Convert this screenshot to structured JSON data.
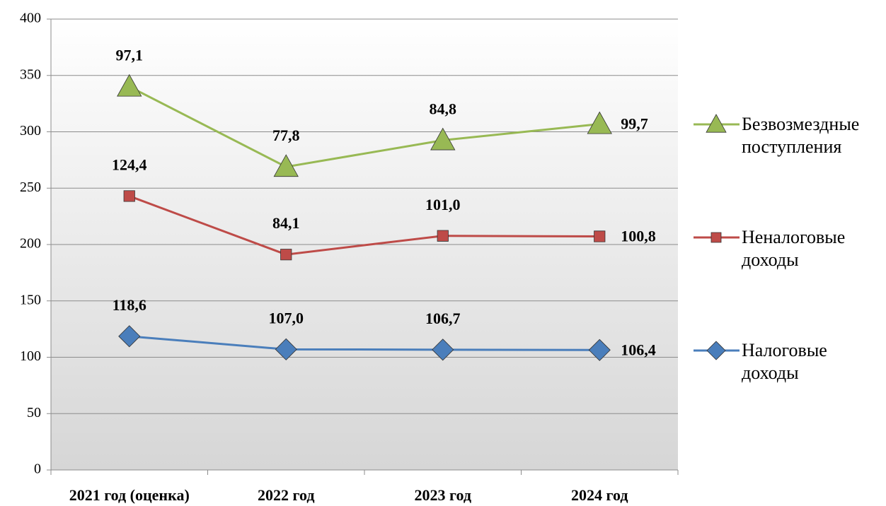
{
  "chart_data": {
    "type": "line",
    "stacked": true,
    "categories": [
      "2021 год (оценка)",
      "2022 год",
      "2023 год",
      "2024 год"
    ],
    "series": [
      {
        "name": "Налоговые доходы",
        "color": "#4a7ebb",
        "marker": "diamond",
        "values": [
          118.6,
          107.0,
          106.7,
          106.4
        ],
        "value_labels": [
          "118,6",
          "107,0",
          "106,7",
          "106,4"
        ]
      },
      {
        "name": "Неналоговые доходы",
        "color": "#be4b48",
        "marker": "square",
        "values": [
          124.4,
          84.1,
          101.0,
          100.8
        ],
        "value_labels": [
          "124,4",
          "84,1",
          "101,0",
          "100,8"
        ]
      },
      {
        "name": "Безвозмездные поступления",
        "color": "#98b954",
        "marker": "triangle",
        "values": [
          97.1,
          77.8,
          84.8,
          99.7
        ],
        "value_labels": [
          "97,1",
          "77,8",
          "84,8",
          "99,7"
        ]
      }
    ],
    "ylim": [
      0,
      400
    ],
    "yticks": [
      0,
      50,
      100,
      150,
      200,
      250,
      300,
      350,
      400
    ],
    "grid": true,
    "legend": "right"
  }
}
